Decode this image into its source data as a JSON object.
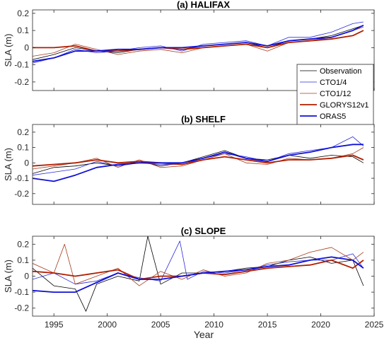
{
  "figure": {
    "xlabel": "Year",
    "x_ticks": [
      1995,
      2000,
      2005,
      2010,
      2015,
      2020,
      2025
    ],
    "xlim": [
      1993,
      2025
    ]
  },
  "chart_data": [
    {
      "type": "line",
      "title": "(a) HALIFAX",
      "ylabel": "SLA (m)",
      "ylim": [
        -0.25,
        0.22
      ],
      "y_ticks": [
        -0.2,
        -0.1,
        0,
        0.1,
        0.2
      ],
      "x_ticks": [
        1995,
        2000,
        2005,
        2010,
        2015,
        2020,
        2025
      ],
      "legend_placement": "lower-right",
      "series": [
        {
          "name": "Observation",
          "color": "#000000",
          "width": 0.8,
          "x": [
            1993,
            1995,
            1997,
            1999,
            2001,
            2003,
            2005,
            2007,
            2009,
            2011,
            2013,
            2015,
            2017,
            2019,
            2021,
            2023,
            2024
          ],
          "y": [
            -0.07,
            -0.04,
            0.0,
            -0.02,
            -0.03,
            -0.01,
            0.0,
            -0.01,
            0.01,
            0.02,
            0.03,
            0.0,
            0.04,
            0.05,
            0.07,
            0.11,
            0.13
          ]
        },
        {
          "name": "CTO1/4",
          "color": "#2a2ad8",
          "width": 0.8,
          "x": [
            1993,
            1995,
            1997,
            1999,
            2001,
            2003,
            2005,
            2007,
            2009,
            2011,
            2013,
            2015,
            2017,
            2019,
            2021,
            2023,
            2024
          ],
          "y": [
            -0.09,
            -0.06,
            -0.01,
            -0.03,
            -0.02,
            0.0,
            0.01,
            -0.02,
            0.02,
            0.03,
            0.04,
            0.01,
            0.06,
            0.06,
            0.09,
            0.14,
            0.15
          ]
        },
        {
          "name": "CTO1/12",
          "color": "#a83a1a",
          "width": 0.8,
          "x": [
            1993,
            1995,
            1997,
            1999,
            2001,
            2003,
            2005,
            2007,
            2009,
            2011,
            2013,
            2015,
            2017,
            2019,
            2021,
            2023,
            2024
          ],
          "y": [
            -0.05,
            -0.03,
            0.02,
            -0.01,
            -0.04,
            -0.02,
            -0.01,
            -0.03,
            0.0,
            0.01,
            0.02,
            -0.02,
            0.03,
            0.04,
            0.06,
            0.1,
            0.12
          ]
        },
        {
          "name": "GLORYS12v1",
          "color": "#b01e00",
          "width": 1.8,
          "x": [
            1993,
            1995,
            1997,
            1999,
            2001,
            2003,
            2005,
            2007,
            2009,
            2011,
            2013,
            2015,
            2017,
            2019,
            2021,
            2023,
            2024
          ],
          "y": [
            0.0,
            0.0,
            0.01,
            -0.02,
            -0.02,
            -0.01,
            0.0,
            -0.01,
            0.0,
            0.01,
            0.02,
            0.0,
            0.03,
            0.04,
            0.05,
            0.07,
            0.1
          ]
        },
        {
          "name": "ORAS5",
          "color": "#1010d8",
          "width": 1.8,
          "x": [
            1993,
            1995,
            1997,
            1999,
            2001,
            2003,
            2005,
            2007,
            2009,
            2011,
            2013,
            2015,
            2017,
            2019,
            2021,
            2023,
            2024
          ],
          "y": [
            -0.08,
            -0.06,
            -0.02,
            -0.02,
            -0.01,
            -0.01,
            0.0,
            0.0,
            0.01,
            0.02,
            0.03,
            0.01,
            0.04,
            0.05,
            0.06,
            0.1,
            0.13
          ]
        }
      ]
    },
    {
      "type": "line",
      "title": "(b) SHELF",
      "ylabel": "SLA (m)",
      "ylim": [
        -0.27,
        0.25
      ],
      "y_ticks": [
        -0.2,
        -0.1,
        0,
        0.1,
        0.2
      ],
      "x_ticks": [
        1995,
        2000,
        2005,
        2010,
        2015,
        2020,
        2025
      ],
      "series": [
        {
          "name": "Observation",
          "color": "#000000",
          "width": 0.8,
          "x": [
            1993,
            1995,
            1997,
            1999,
            2001,
            2003,
            2005,
            2007,
            2009,
            2011,
            2013,
            2015,
            2017,
            2019,
            2021,
            2023,
            2024
          ],
          "y": [
            -0.07,
            -0.03,
            -0.02,
            0.0,
            -0.02,
            0.01,
            -0.02,
            0.0,
            0.04,
            0.08,
            0.03,
            0.02,
            0.05,
            0.03,
            0.05,
            0.04,
            0.0
          ]
        },
        {
          "name": "CTO1/4",
          "color": "#2a2ad8",
          "width": 0.8,
          "x": [
            1993,
            1995,
            1997,
            1999,
            2001,
            2003,
            2005,
            2007,
            2009,
            2011,
            2013,
            2015,
            2017,
            2019,
            2021,
            2023,
            2024
          ],
          "y": [
            -0.08,
            -0.06,
            -0.04,
            0.01,
            -0.02,
            0.0,
            -0.01,
            -0.01,
            0.03,
            0.06,
            0.04,
            0.01,
            0.06,
            0.08,
            0.1,
            0.17,
            0.11
          ]
        },
        {
          "name": "CTO1/12",
          "color": "#a83a1a",
          "width": 0.8,
          "x": [
            1993,
            1995,
            1997,
            1999,
            2001,
            2003,
            2005,
            2007,
            2009,
            2011,
            2013,
            2015,
            2017,
            2019,
            2021,
            2023,
            2024
          ],
          "y": [
            -0.04,
            -0.02,
            0.0,
            0.03,
            -0.03,
            0.02,
            -0.03,
            -0.02,
            0.02,
            0.06,
            0.0,
            -0.01,
            0.03,
            0.02,
            0.03,
            0.06,
            0.1
          ]
        },
        {
          "name": "GLORYS12v1",
          "color": "#b01e00",
          "width": 1.8,
          "x": [
            1993,
            1995,
            1997,
            1999,
            2001,
            2003,
            2005,
            2007,
            2009,
            2011,
            2013,
            2015,
            2017,
            2019,
            2021,
            2023,
            2024
          ],
          "y": [
            -0.02,
            -0.01,
            0.0,
            0.02,
            0.0,
            0.01,
            0.0,
            -0.01,
            0.02,
            0.04,
            0.02,
            0.0,
            0.02,
            0.02,
            0.03,
            0.05,
            0.02
          ]
        },
        {
          "name": "ORAS5",
          "color": "#1010d8",
          "width": 1.8,
          "x": [
            1993,
            1995,
            1997,
            1999,
            2001,
            2003,
            2005,
            2007,
            2009,
            2011,
            2013,
            2015,
            2017,
            2019,
            2021,
            2023,
            2024
          ],
          "y": [
            -0.1,
            -0.12,
            -0.08,
            -0.03,
            -0.01,
            0.0,
            0.0,
            0.0,
            0.03,
            0.07,
            0.03,
            0.01,
            0.05,
            0.07,
            0.1,
            0.12,
            0.12
          ]
        }
      ]
    },
    {
      "type": "line",
      "title": "(c) SLOPE",
      "ylabel": "SLA (m)",
      "ylim": [
        -0.25,
        0.25
      ],
      "y_ticks": [
        -0.2,
        -0.1,
        0,
        0.1,
        0.2
      ],
      "x_ticks": [
        1995,
        2000,
        2005,
        2010,
        2015,
        2020,
        2025
      ],
      "series": [
        {
          "name": "Observation",
          "color": "#000000",
          "width": 0.8,
          "x": [
            1993,
            1995,
            1997,
            1998,
            1999,
            2001,
            2003,
            2003.8,
            2005,
            2007,
            2009,
            2011,
            2013,
            2015,
            2017,
            2019,
            2021,
            2023,
            2024
          ],
          "y": [
            0.05,
            -0.06,
            -0.08,
            -0.22,
            -0.05,
            0.0,
            -0.03,
            0.25,
            -0.05,
            0.02,
            0.02,
            0.03,
            0.05,
            0.06,
            0.1,
            0.12,
            0.08,
            0.1,
            -0.06
          ]
        },
        {
          "name": "CTO1/4",
          "color": "#2a2ad8",
          "width": 0.8,
          "x": [
            1993,
            1995,
            1997,
            1999,
            2001,
            2003,
            2005,
            2006.8,
            2007.5,
            2009,
            2011,
            2013,
            2015,
            2017,
            2019,
            2021,
            2023,
            2024
          ],
          "y": [
            -0.02,
            0.02,
            -0.05,
            -0.03,
            0.02,
            -0.01,
            -0.03,
            0.22,
            -0.02,
            0.03,
            0.02,
            0.04,
            0.07,
            0.09,
            0.1,
            0.1,
            0.14,
            0.05
          ]
        },
        {
          "name": "CTO1/12",
          "color": "#a83a1a",
          "width": 0.8,
          "x": [
            1993,
            1995,
            1996,
            1997,
            1999,
            2001,
            2003,
            2005,
            2007,
            2009,
            2011,
            2013,
            2015,
            2017,
            2019,
            2021,
            2023,
            2024
          ],
          "y": [
            0.08,
            0.02,
            0.2,
            -0.05,
            0.0,
            0.05,
            -0.06,
            0.03,
            -0.02,
            0.04,
            0.0,
            0.02,
            0.08,
            0.1,
            0.15,
            0.18,
            0.1,
            0.15
          ]
        },
        {
          "name": "GLORYS12v1",
          "color": "#b01e00",
          "width": 1.8,
          "x": [
            1993,
            1995,
            1997,
            1999,
            2001,
            2003,
            2005,
            2007,
            2009,
            2011,
            2013,
            2015,
            2017,
            2019,
            2021,
            2023,
            2024
          ],
          "y": [
            0.03,
            0.02,
            0.0,
            0.02,
            0.04,
            -0.02,
            0.0,
            0.0,
            0.02,
            0.01,
            0.03,
            0.05,
            0.06,
            0.07,
            0.1,
            0.05,
            0.1
          ]
        },
        {
          "name": "ORAS5",
          "color": "#1010d8",
          "width": 1.8,
          "x": [
            1993,
            1995,
            1997,
            1999,
            2001,
            2003,
            2005,
            2007,
            2009,
            2011,
            2013,
            2015,
            2017,
            2019,
            2021,
            2023,
            2024
          ],
          "y": [
            -0.09,
            -0.1,
            -0.1,
            -0.04,
            0.02,
            -0.02,
            -0.02,
            0.0,
            0.02,
            0.03,
            0.04,
            0.06,
            0.07,
            0.1,
            0.12,
            0.1,
            0.05
          ]
        }
      ]
    }
  ]
}
